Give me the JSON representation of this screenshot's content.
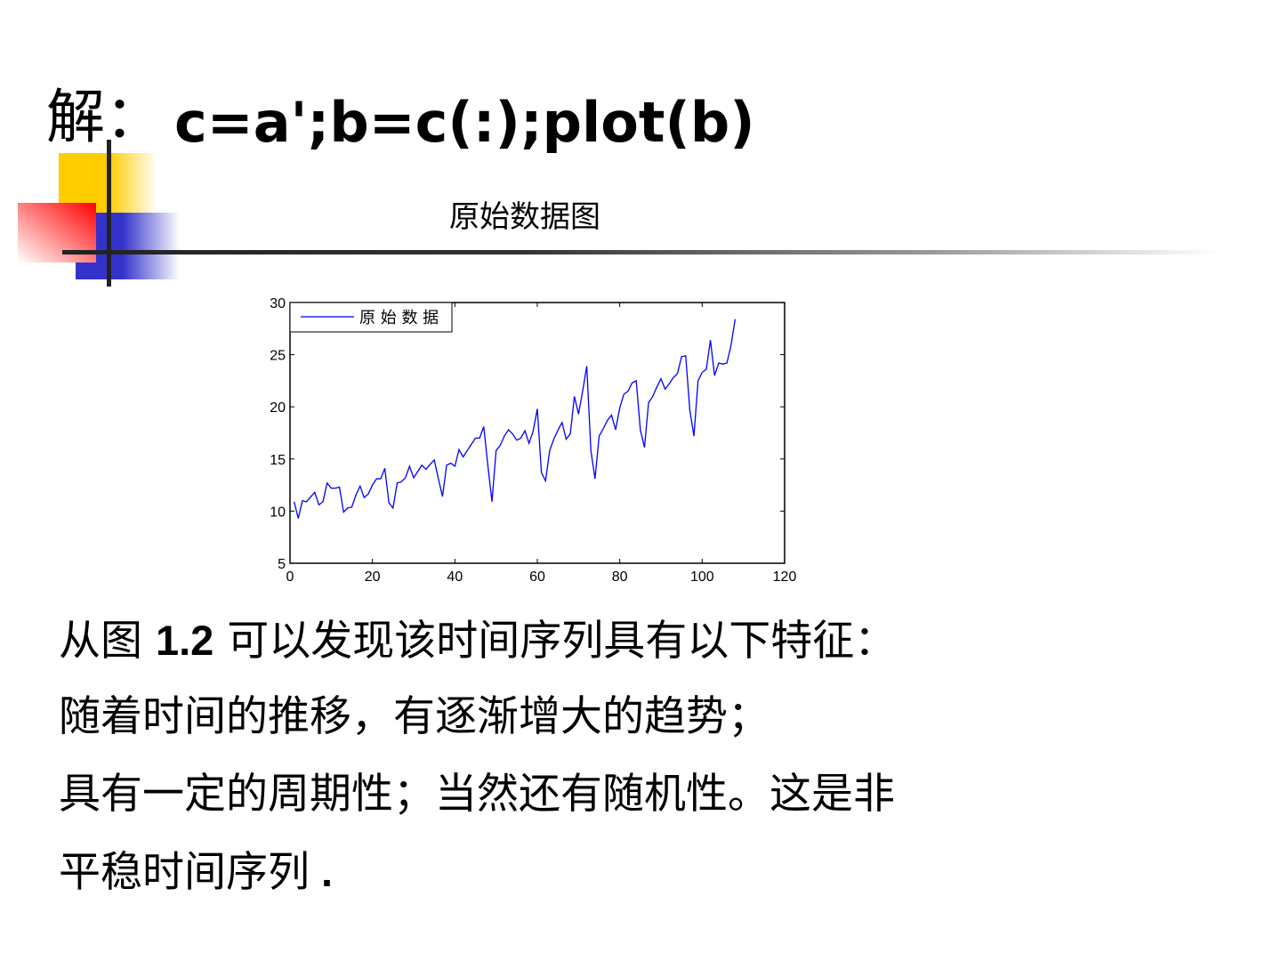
{
  "header": {
    "label": "解：",
    "code": "c=a';b=c(:);plot(b)"
  },
  "chart_data": {
    "type": "line",
    "title": "原始数据图",
    "xlabel": "",
    "ylabel": "",
    "xlim": [
      0,
      120
    ],
    "ylim": [
      5,
      30
    ],
    "xticks": [
      0,
      20,
      40,
      60,
      80,
      100,
      120
    ],
    "yticks": [
      5,
      10,
      15,
      20,
      25,
      30
    ],
    "grid": false,
    "legend_placement": "top-left",
    "series": [
      {
        "name": "原 始 数 据",
        "color": "#0000ff",
        "values": [
          10.9,
          9.3,
          11.0,
          10.9,
          11.35,
          11.8,
          10.6,
          10.9,
          12.7,
          12.2,
          12.2,
          12.3,
          9.9,
          10.3,
          10.4,
          11.55,
          12.4,
          11.3,
          11.65,
          12.5,
          13.1,
          13.1,
          14.1,
          10.8,
          10.3,
          12.7,
          12.8,
          13.2,
          14.3,
          13.2,
          13.8,
          14.4,
          14.0,
          14.5,
          14.9,
          13.1,
          11.4,
          14.4,
          14.6,
          14.3,
          15.9,
          15.2,
          15.8,
          16.4,
          17.0,
          17.0,
          18.1,
          14.4,
          10.9,
          15.8,
          16.3,
          17.2,
          17.8,
          17.4,
          16.8,
          17.0,
          17.7,
          16.5,
          17.7,
          19.8,
          13.7,
          12.9,
          15.8,
          16.9,
          17.75,
          18.5,
          16.9,
          17.4,
          21.0,
          19.3,
          21.5,
          23.9,
          15.8,
          13.1,
          17.2,
          17.9,
          18.7,
          19.2,
          17.8,
          19.9,
          21.2,
          21.5,
          22.3,
          22.5,
          17.8,
          16.1,
          20.4,
          21.0,
          21.9,
          22.7,
          21.7,
          22.2,
          22.8,
          23.2,
          24.8,
          24.9,
          19.7,
          17.2,
          22.5,
          23.3,
          23.6,
          26.4,
          23.0,
          24.2,
          24.1,
          24.2,
          25.9,
          28.4
        ]
      }
    ]
  },
  "body": {
    "line1_a": "从图 ",
    "line1_b": "1.2",
    "line1_c": " 可以发现该时间序列具有以下特征：",
    "line2": "随着时间的推移，有逐渐增大的趋势；",
    "line3": "具有一定的周期性；当然还有随机性。这是非",
    "line4_a": "平稳时间序列",
    "line4_b": " ."
  }
}
